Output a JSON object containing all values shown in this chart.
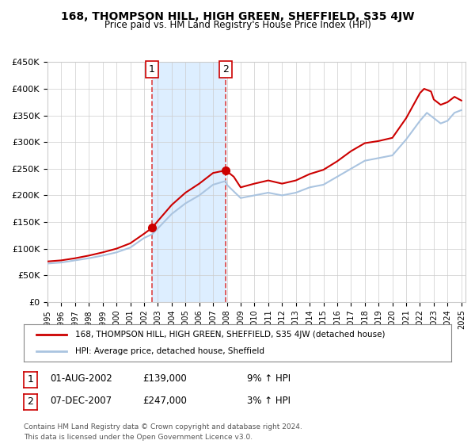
{
  "title": "168, THOMPSON HILL, HIGH GREEN, SHEFFIELD, S35 4JW",
  "subtitle": "Price paid vs. HM Land Registry's House Price Index (HPI)",
  "legend_line1": "168, THOMPSON HILL, HIGH GREEN, SHEFFIELD, S35 4JW (detached house)",
  "legend_line2": "HPI: Average price, detached house, Sheffield",
  "footnote1": "Contains HM Land Registry data © Crown copyright and database right 2024.",
  "footnote2": "This data is licensed under the Open Government Licence v3.0.",
  "table_row1_num": "1",
  "table_row1_date": "01-AUG-2002",
  "table_row1_price": "£139,000",
  "table_row1_hpi": "9% ↑ HPI",
  "table_row2_num": "2",
  "table_row2_date": "07-DEC-2007",
  "table_row2_price": "£247,000",
  "table_row2_hpi": "3% ↑ HPI",
  "sale1_x": 2002.58,
  "sale1_y": 139000,
  "sale2_x": 2007.92,
  "sale2_y": 247000,
  "vline1_x": 2002.58,
  "vline2_x": 2007.92,
  "ylim": [
    0,
    450000
  ],
  "xlim_left": 1995.0,
  "xlim_right": 2025.3,
  "hpi_color": "#aac4e0",
  "price_color": "#cc0000",
  "sale_dot_color": "#cc0000",
  "shade_color": "#ddeeff",
  "vline_color": "#dd4444",
  "background_color": "#ffffff",
  "grid_color": "#cccccc"
}
